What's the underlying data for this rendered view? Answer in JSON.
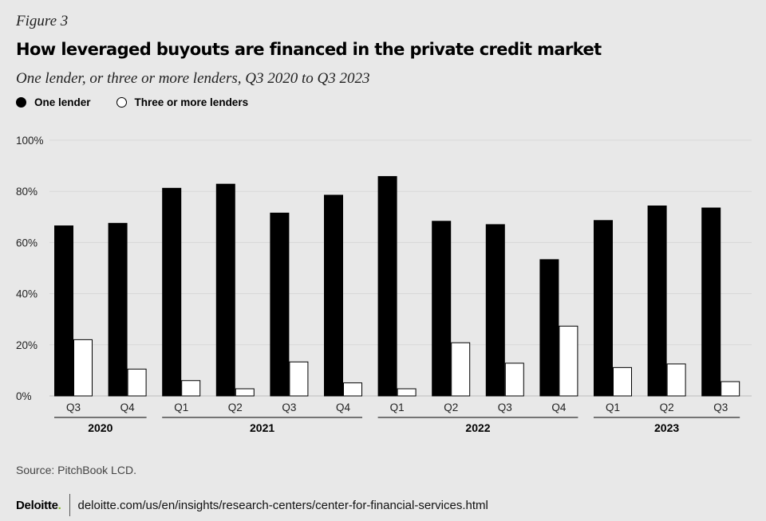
{
  "figure_label": "Figure 3",
  "chart_data": {
    "type": "bar",
    "title": "How leveraged buyouts are financed in the private credit market",
    "subtitle": "One lender, or three or more lenders, Q3 2020 to Q3 2023",
    "categories": [
      "Q3",
      "Q4",
      "Q1",
      "Q2",
      "Q3",
      "Q4",
      "Q1",
      "Q2",
      "Q3",
      "Q4",
      "Q1",
      "Q2",
      "Q3"
    ],
    "year_groups": [
      {
        "label": "2020",
        "count": 2
      },
      {
        "label": "2021",
        "count": 4
      },
      {
        "label": "2022",
        "count": 4
      },
      {
        "label": "2023",
        "count": 3
      }
    ],
    "series": [
      {
        "name": "One lender",
        "color": "#000000",
        "values": [
          66.5,
          67.5,
          81.2,
          82.8,
          71.5,
          78.5,
          85.8,
          68.3,
          67.0,
          53.3,
          68.6,
          74.3,
          73.5
        ]
      },
      {
        "name": "Three or more lenders",
        "color": "#ffffff",
        "values": [
          22.0,
          10.5,
          6.0,
          2.8,
          13.3,
          5.1,
          2.8,
          20.8,
          12.8,
          27.3,
          11.1,
          12.5,
          5.6
        ]
      }
    ],
    "y_ticks": [
      "0%",
      "20%",
      "40%",
      "60%",
      "80%",
      "100%"
    ],
    "ylim": [
      0,
      100
    ],
    "grid": true,
    "legend_position": "top-left"
  },
  "source": "Source: PitchBook LCD.",
  "footer": {
    "brand": "Deloitte",
    "brand_dot": ".",
    "url": "deloitte.com/us/en/insights/research-centers/center-for-financial-services.html"
  },
  "colors": {
    "background": "#e8e8e8",
    "grid": "#d7d7d7",
    "brand_accent": "#86bc25"
  }
}
